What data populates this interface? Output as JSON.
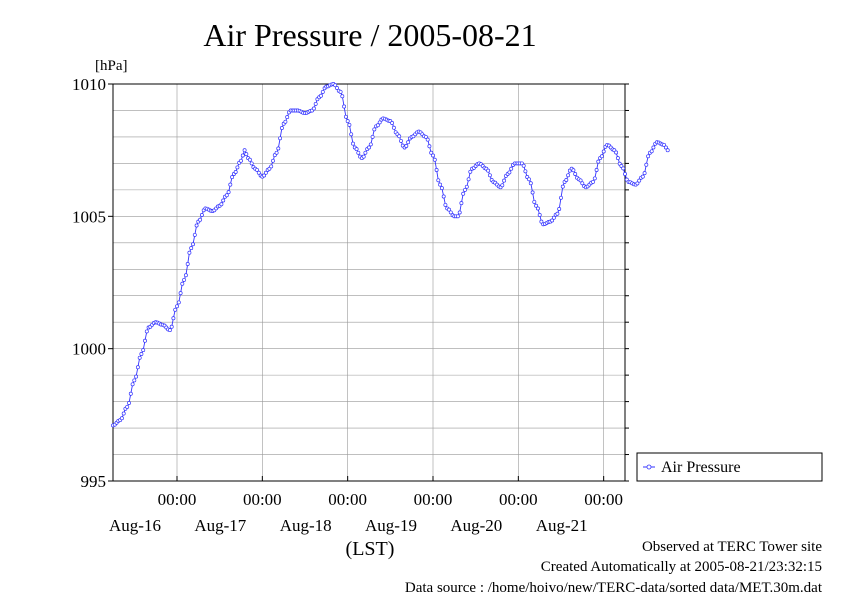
{
  "chart_data": {
    "type": "line",
    "title": "Air Pressure / 2005-08-21",
    "ylabel": "[hPa]",
    "xlabel": "(LST)",
    "ylim": [
      995,
      1010
    ],
    "yticks": [
      995,
      1000,
      1005,
      1010
    ],
    "xlim_hours_from_aug16_0000": [
      -18,
      126
    ],
    "xticks": [
      {
        "time": "00:00",
        "date": "Aug-16"
      },
      {
        "time": "00:00",
        "date": "Aug-17"
      },
      {
        "time": "00:00",
        "date": "Aug-18"
      },
      {
        "time": "00:00",
        "date": "Aug-19"
      },
      {
        "time": "00:00",
        "date": "Aug-20"
      },
      {
        "time": "00:00",
        "date": "Aug-21"
      }
    ],
    "grid": true,
    "legend_position": "right",
    "series": [
      {
        "name": "Air Pressure",
        "color": "#3333ff",
        "marker": "circle",
        "points": [
          [
            "2005-08-15 06:00",
            997.1
          ],
          [
            "2005-08-15 08:00",
            997.3
          ],
          [
            "2005-08-15 10:00",
            997.8
          ],
          [
            "2005-08-15 12:00",
            998.8
          ],
          [
            "2005-08-15 14:00",
            999.8
          ],
          [
            "2005-08-15 16:00",
            1000.8
          ],
          [
            "2005-08-15 18:00",
            1001.0
          ],
          [
            "2005-08-15 20:00",
            1000.9
          ],
          [
            "2005-08-15 22:00",
            1000.7
          ],
          [
            "2005-08-16 00:00",
            1001.6
          ],
          [
            "2005-08-16 02:00",
            1002.6
          ],
          [
            "2005-08-16 04:00",
            1003.8
          ],
          [
            "2005-08-16 06:00",
            1004.8
          ],
          [
            "2005-08-16 08:00",
            1005.3
          ],
          [
            "2005-08-16 10:00",
            1005.2
          ],
          [
            "2005-08-16 12:00",
            1005.4
          ],
          [
            "2005-08-16 14:00",
            1005.8
          ],
          [
            "2005-08-16 16:00",
            1006.6
          ],
          [
            "2005-08-16 18:00",
            1007.1
          ],
          [
            "2005-08-16 19:00",
            1007.5
          ],
          [
            "2005-08-16 20:00",
            1007.2
          ],
          [
            "2005-08-16 22:00",
            1006.8
          ],
          [
            "2005-08-17 00:00",
            1006.5
          ],
          [
            "2005-08-17 02:00",
            1006.8
          ],
          [
            "2005-08-17 04:00",
            1007.4
          ],
          [
            "2005-08-17 06:00",
            1008.5
          ],
          [
            "2005-08-17 08:00",
            1009.0
          ],
          [
            "2005-08-17 10:00",
            1009.0
          ],
          [
            "2005-08-17 12:00",
            1008.9
          ],
          [
            "2005-08-17 14:00",
            1009.0
          ],
          [
            "2005-08-17 16:00",
            1009.5
          ],
          [
            "2005-08-17 18:00",
            1009.9
          ],
          [
            "2005-08-17 20:00",
            1010.0
          ],
          [
            "2005-08-17 22:00",
            1009.7
          ],
          [
            "2005-08-18 00:00",
            1008.6
          ],
          [
            "2005-08-18 02:00",
            1007.6
          ],
          [
            "2005-08-18 04:00",
            1007.2
          ],
          [
            "2005-08-18 06:00",
            1007.6
          ],
          [
            "2005-08-18 08:00",
            1008.4
          ],
          [
            "2005-08-18 10:00",
            1008.7
          ],
          [
            "2005-08-18 12:00",
            1008.6
          ],
          [
            "2005-08-18 14:00",
            1008.1
          ],
          [
            "2005-08-18 16:00",
            1007.6
          ],
          [
            "2005-08-18 18:00",
            1008.0
          ],
          [
            "2005-08-18 20:00",
            1008.2
          ],
          [
            "2005-08-18 22:00",
            1008.0
          ],
          [
            "2005-08-19 00:00",
            1007.3
          ],
          [
            "2005-08-19 02:00",
            1006.2
          ],
          [
            "2005-08-19 04:00",
            1005.3
          ],
          [
            "2005-08-19 06:00",
            1005.0
          ],
          [
            "2005-08-19 07:00",
            1005.0
          ],
          [
            "2005-08-19 09:00",
            1006.0
          ],
          [
            "2005-08-19 11:00",
            1006.8
          ],
          [
            "2005-08-19 13:00",
            1007.0
          ],
          [
            "2005-08-19 15:00",
            1006.8
          ],
          [
            "2005-08-19 17:00",
            1006.3
          ],
          [
            "2005-08-19 19:00",
            1006.1
          ],
          [
            "2005-08-19 21:00",
            1006.6
          ],
          [
            "2005-08-19 23:00",
            1007.0
          ],
          [
            "2005-08-20 01:00",
            1007.0
          ],
          [
            "2005-08-20 03:00",
            1006.4
          ],
          [
            "2005-08-20 05:00",
            1005.4
          ],
          [
            "2005-08-20 07:00",
            1004.7
          ],
          [
            "2005-08-20 09:00",
            1004.8
          ],
          [
            "2005-08-20 11:00",
            1005.1
          ],
          [
            "2005-08-20 13:00",
            1006.3
          ],
          [
            "2005-08-20 15:00",
            1006.8
          ],
          [
            "2005-08-20 17:00",
            1006.4
          ],
          [
            "2005-08-20 19:00",
            1006.1
          ],
          [
            "2005-08-20 21:00",
            1006.3
          ],
          [
            "2005-08-20 23:00",
            1007.2
          ],
          [
            "2005-08-21 01:00",
            1007.7
          ],
          [
            "2005-08-21 03:00",
            1007.5
          ],
          [
            "2005-08-21 05:00",
            1006.9
          ],
          [
            "2005-08-21 07:00",
            1006.3
          ],
          [
            "2005-08-21 09:00",
            1006.2
          ],
          [
            "2005-08-21 11:00",
            1006.5
          ],
          [
            "2005-08-21 13:00",
            1007.4
          ],
          [
            "2005-08-21 15:00",
            1007.8
          ],
          [
            "2005-08-21 17:00",
            1007.7
          ],
          [
            "2005-08-21 18:00",
            1007.5
          ]
        ]
      }
    ]
  },
  "footer": {
    "line1": "Observed at TERC Tower site",
    "line2": "Created Automatically at 2005-08-21/23:32:15",
    "line3": "Data source : /home/hoivo/new/TERC-data/sorted  data/MET.30m.dat"
  }
}
